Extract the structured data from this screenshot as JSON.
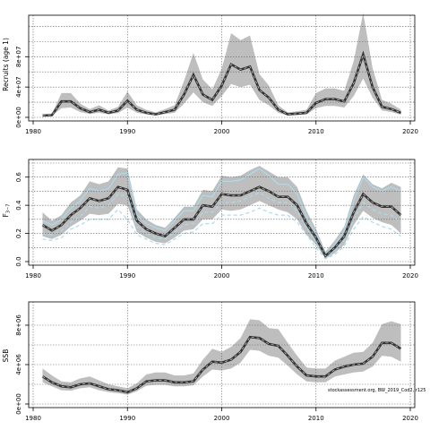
{
  "chart_data": [
    {
      "type": "line",
      "ylabel": "Recruits (age 1)",
      "x": [
        1981,
        1982,
        1983,
        1984,
        1985,
        1986,
        1987,
        1988,
        1989,
        1990,
        1991,
        1992,
        1993,
        1994,
        1995,
        1996,
        1997,
        1998,
        1999,
        2000,
        2001,
        2002,
        2003,
        2004,
        2005,
        2006,
        2007,
        2008,
        2009,
        2010,
        2011,
        2012,
        2013,
        2014,
        2015,
        2016,
        2017,
        2018,
        2019
      ],
      "series": [
        {
          "role": "median",
          "values": [
            2500000.0,
            3000000.0,
            21000000.0,
            21000000.0,
            12000000.0,
            7000000.0,
            10000000.0,
            6000000.0,
            9000000.0,
            22000000.0,
            10000000.0,
            6000000.0,
            4000000.0,
            7000000.0,
            10000000.0,
            30000000.0,
            56000000.0,
            30000000.0,
            23000000.0,
            42000000.0,
            70000000.0,
            63000000.0,
            67000000.0,
            36000000.0,
            26000000.0,
            10000000.0,
            4000000.0,
            5000000.0,
            6000000.0,
            19000000.0,
            24000000.0,
            24000000.0,
            21000000.0,
            45000000.0,
            83000000.0,
            40000000.0,
            14000000.0,
            11000000.0,
            6000000.0
          ]
        },
        {
          "role": "lower",
          "values": [
            1500000.0,
            2000000.0,
            12000000.0,
            13000000.0,
            7000000.0,
            4500000.0,
            6000000.0,
            4000000.0,
            5500000.0,
            13000000.0,
            6000000.0,
            4000000.0,
            2500000.0,
            4500000.0,
            6000000.0,
            18000000.0,
            33000000.0,
            20000000.0,
            15000000.0,
            28000000.0,
            44000000.0,
            40000000.0,
            43000000.0,
            23000000.0,
            16000000.0,
            6000000.0,
            2500000.0,
            3000000.0,
            4000000.0,
            12000000.0,
            15000000.0,
            15000000.0,
            13000000.0,
            28000000.0,
            51000000.0,
            26000000.0,
            9000000.0,
            7000000.0,
            3500000.0
          ]
        },
        {
          "role": "upper",
          "values": [
            4000000.0,
            4500000.0,
            32000000.0,
            32000000.0,
            18000000.0,
            11000000.0,
            16000000.0,
            9000000.0,
            14000000.0,
            34000000.0,
            16000000.0,
            10000000.0,
            6500000.0,
            11000000.0,
            16000000.0,
            48000000.0,
            85000000.0,
            50000000.0,
            37000000.0,
            64000000.0,
            111000000.0,
            102000000.0,
            108000000.0,
            57000000.0,
            42000000.0,
            16000000.0,
            6500000.0,
            8000000.0,
            10000000.0,
            32000000.0,
            38000000.0,
            38000000.0,
            35000000.0,
            74000000.0,
            138000000.0,
            65000000.0,
            23000000.0,
            18000000.0,
            10000000.0
          ]
        }
      ],
      "xlim": [
        1980,
        2020
      ],
      "ylim": [
        0,
        130000000.0
      ],
      "xticks": [
        "1980",
        "1990",
        "2000",
        "2010",
        "2020"
      ],
      "yticks": [
        {
          "value": 0,
          "label": "0e+00"
        },
        {
          "value": 40000000.0,
          "label": "4e+07"
        },
        {
          "value": 80000000.0,
          "label": "8e+07"
        }
      ],
      "hgrid": [
        0,
        20000000.0,
        40000000.0,
        60000000.0,
        80000000.0,
        100000000.0,
        120000000.0
      ],
      "vgrid": [
        1980,
        1990,
        2000,
        2010,
        2020
      ]
    },
    {
      "type": "line",
      "ylabel": "F3-7",
      "ylabel_main": "F",
      "ylabel_sub": "3−7",
      "x": [
        1981,
        1982,
        1983,
        1984,
        1985,
        1986,
        1987,
        1988,
        1989,
        1990,
        1991,
        1992,
        1993,
        1994,
        1995,
        1996,
        1997,
        1998,
        1999,
        2000,
        2001,
        2002,
        2003,
        2004,
        2005,
        2006,
        2007,
        2008,
        2009,
        2010,
        2011,
        2012,
        2013,
        2014,
        2015,
        2016,
        2017,
        2018,
        2019
      ],
      "series": [
        {
          "role": "median",
          "values": [
            0.26,
            0.22,
            0.26,
            0.33,
            0.38,
            0.45,
            0.43,
            0.45,
            0.53,
            0.51,
            0.29,
            0.23,
            0.2,
            0.18,
            0.24,
            0.3,
            0.3,
            0.4,
            0.39,
            0.48,
            0.47,
            0.47,
            0.5,
            0.53,
            0.5,
            0.46,
            0.46,
            0.4,
            0.27,
            0.17,
            0.04,
            0.1,
            0.18,
            0.35,
            0.48,
            0.42,
            0.39,
            0.39,
            0.33
          ]
        },
        {
          "role": "lower",
          "values": [
            0.18,
            0.16,
            0.19,
            0.25,
            0.29,
            0.34,
            0.33,
            0.34,
            0.41,
            0.4,
            0.21,
            0.17,
            0.14,
            0.13,
            0.17,
            0.22,
            0.23,
            0.3,
            0.3,
            0.37,
            0.36,
            0.37,
            0.4,
            0.43,
            0.4,
            0.37,
            0.35,
            0.3,
            0.19,
            0.12,
            0.02,
            0.06,
            0.12,
            0.26,
            0.36,
            0.31,
            0.28,
            0.26,
            0.2
          ]
        },
        {
          "role": "upper",
          "values": [
            0.35,
            0.29,
            0.33,
            0.42,
            0.47,
            0.57,
            0.55,
            0.57,
            0.67,
            0.66,
            0.37,
            0.3,
            0.26,
            0.24,
            0.31,
            0.39,
            0.39,
            0.51,
            0.5,
            0.61,
            0.6,
            0.61,
            0.65,
            0.68,
            0.64,
            0.6,
            0.6,
            0.53,
            0.36,
            0.23,
            0.07,
            0.15,
            0.25,
            0.47,
            0.62,
            0.55,
            0.52,
            0.56,
            0.53
          ]
        }
      ],
      "light_lines": [
        [
          0.29,
          0.26,
          0.3,
          0.38,
          0.43,
          0.52,
          0.5,
          0.52,
          0.62,
          0.63,
          0.33,
          0.27,
          0.24,
          0.22,
          0.29,
          0.36,
          0.36,
          0.47,
          0.46,
          0.57,
          0.57,
          0.58,
          0.62,
          0.66,
          0.61,
          0.55,
          0.55,
          0.48,
          0.32,
          0.2,
          0.05,
          0.12,
          0.22,
          0.43,
          0.6,
          0.53,
          0.5,
          0.53,
          0.5
        ],
        [
          0.2,
          0.19,
          0.22,
          0.28,
          0.32,
          0.39,
          0.38,
          0.4,
          0.48,
          0.46,
          0.25,
          0.2,
          0.17,
          0.16,
          0.21,
          0.26,
          0.27,
          0.35,
          0.35,
          0.42,
          0.42,
          0.43,
          0.46,
          0.49,
          0.45,
          0.42,
          0.42,
          0.36,
          0.24,
          0.14,
          0.03,
          0.08,
          0.15,
          0.3,
          0.42,
          0.37,
          0.34,
          0.33,
          0.28
        ],
        [
          0.16,
          0.15,
          0.17,
          0.23,
          0.26,
          0.3,
          0.3,
          0.3,
          0.37,
          0.3,
          0.19,
          0.16,
          0.13,
          0.12,
          0.16,
          0.2,
          0.21,
          0.27,
          0.27,
          0.33,
          0.33,
          0.33,
          0.35,
          0.38,
          0.35,
          0.33,
          0.33,
          0.28,
          0.19,
          0.1,
          0.02,
          0.05,
          0.11,
          0.23,
          0.32,
          0.28,
          0.25,
          0.23,
          0.18
        ]
      ],
      "xlim": [
        1980,
        2020
      ],
      "ylim": [
        0,
        0.7
      ],
      "xticks": [
        "1980",
        "1990",
        "2000",
        "2010",
        "2020"
      ],
      "yticks": [
        {
          "value": 0,
          "label": "0.0"
        },
        {
          "value": 0.2,
          "label": "0.2"
        },
        {
          "value": 0.4,
          "label": "0.4"
        },
        {
          "value": 0.6,
          "label": "0.6"
        }
      ],
      "hgrid": [
        0,
        0.1,
        0.2,
        0.3,
        0.4,
        0.5,
        0.6,
        0.7
      ],
      "vgrid": [
        1980,
        1990,
        2000,
        2010,
        2020
      ]
    },
    {
      "type": "line",
      "ylabel": "SSB",
      "x": [
        1981,
        1982,
        1983,
        1984,
        1985,
        1986,
        1987,
        1988,
        1989,
        1990,
        1991,
        1992,
        1993,
        1994,
        1995,
        1996,
        1997,
        1998,
        1999,
        2000,
        2001,
        2002,
        2003,
        2004,
        2005,
        2006,
        2007,
        2008,
        2009,
        2010,
        2011,
        2012,
        2013,
        2014,
        2015,
        2016,
        2017,
        2018,
        2019
      ],
      "series": [
        {
          "role": "median",
          "values": [
            2800000.0,
            2200000.0,
            1800000.0,
            1700000.0,
            2000000.0,
            2100000.0,
            1800000.0,
            1500000.0,
            1400000.0,
            1200000.0,
            1600000.0,
            2300000.0,
            2400000.0,
            2400000.0,
            2200000.0,
            2200000.0,
            2300000.0,
            3500000.0,
            4300000.0,
            4200000.0,
            4500000.0,
            5300000.0,
            6800000.0,
            6700000.0,
            6100000.0,
            5900000.0,
            4900000.0,
            3800000.0,
            2900000.0,
            2800000.0,
            2800000.0,
            3500000.0,
            3800000.0,
            4000000.0,
            4100000.0,
            4800000.0,
            6200000.0,
            6200000.0,
            5600000.0
          ]
        },
        {
          "role": "lower",
          "values": [
            2200000.0,
            1800000.0,
            1400000.0,
            1350000.0,
            1600000.0,
            1700000.0,
            1400000.0,
            1200000.0,
            1100000.0,
            950000.0,
            1300000.0,
            1850000.0,
            1950000.0,
            1950000.0,
            1800000.0,
            1800000.0,
            1900000.0,
            2800000.0,
            3500000.0,
            3400000.0,
            3600000.0,
            4200000.0,
            5500000.0,
            5400000.0,
            4900000.0,
            4700000.0,
            3900000.0,
            3000000.0,
            2300000.0,
            2200000.0,
            2200000.0,
            2800000.0,
            3000000.0,
            3200000.0,
            3300000.0,
            3800000.0,
            4900000.0,
            4800000.0,
            4300000.0
          ]
        },
        {
          "role": "upper",
          "values": [
            3600000.0,
            2900000.0,
            2300000.0,
            2200000.0,
            2600000.0,
            2800000.0,
            2400000.0,
            2000000.0,
            1800000.0,
            1600000.0,
            2100000.0,
            3000000.0,
            3200000.0,
            3200000.0,
            2900000.0,
            2900000.0,
            3100000.0,
            4500000.0,
            5600000.0,
            5300000.0,
            5800000.0,
            6700000.0,
            8600000.0,
            8500000.0,
            7700000.0,
            7600000.0,
            6200000.0,
            4900000.0,
            3700000.0,
            3600000.0,
            3600000.0,
            4400000.0,
            4800000.0,
            5200000.0,
            5300000.0,
            6200000.0,
            8100000.0,
            8400000.0,
            8100000.0
          ]
        }
      ],
      "xlim": [
        1980,
        2020
      ],
      "ylim": [
        0,
        10000000.0
      ],
      "xticks": [
        "1980",
        "1990",
        "2000",
        "2010",
        "2020"
      ],
      "yticks": [
        {
          "value": 0,
          "label": "0e+00"
        },
        {
          "value": 4000000.0,
          "label": "4e+06"
        },
        {
          "value": 8000000.0,
          "label": "8e+06"
        }
      ],
      "hgrid": [
        0,
        2000000.0,
        4000000.0,
        6000000.0,
        8000000.0
      ],
      "vgrid": [
        1980,
        1990,
        2000,
        2010,
        2020
      ],
      "annotation": "stockassessment.org, BW_2019_Cod2, r125"
    }
  ],
  "colors": {
    "band": "#bebebe",
    "median": "#333333",
    "light_lines": "#a8dcef",
    "grid": "#666666",
    "axis": "#000000"
  }
}
